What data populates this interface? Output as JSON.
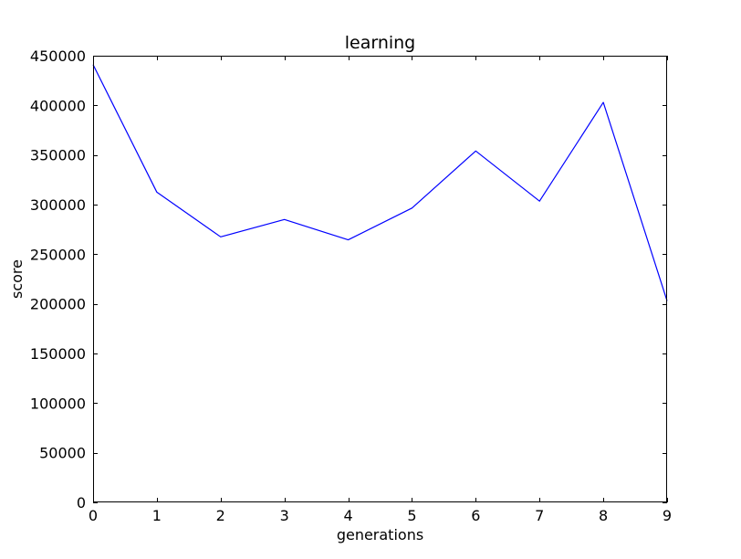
{
  "chart_data": {
    "type": "line",
    "title": "learning",
    "xlabel": "generations",
    "ylabel": "score",
    "xlim": [
      0,
      9
    ],
    "ylim": [
      0,
      450000
    ],
    "x_ticks": [
      "0",
      "1",
      "2",
      "3",
      "4",
      "5",
      "6",
      "7",
      "8",
      "9"
    ],
    "y_ticks": [
      "0",
      "50000",
      "100000",
      "150000",
      "200000",
      "250000",
      "300000",
      "350000",
      "400000",
      "450000"
    ],
    "grid": false,
    "legend": "none",
    "series": [
      {
        "color": "#0000ff",
        "x": [
          0,
          1,
          2,
          3,
          4,
          5,
          6,
          7,
          8,
          9
        ],
        "y": [
          441000,
          312500,
          267500,
          285000,
          264500,
          296500,
          354000,
          303500,
          403000,
          203000
        ]
      }
    ]
  }
}
